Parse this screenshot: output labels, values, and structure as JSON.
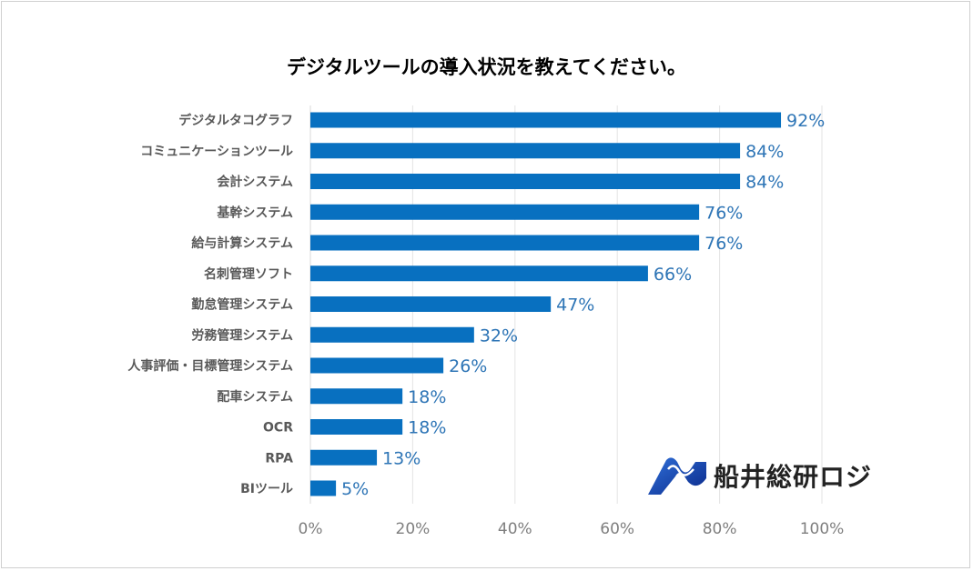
{
  "chart_data": {
    "type": "bar",
    "orientation": "horizontal",
    "title": "デジタルツールの導入状況を教えてください。",
    "categories": [
      "デジタルタコグラフ",
      "コミュニケーションツール",
      "会計システム",
      "基幹システム",
      "給与計算システム",
      "名刺管理ソフト",
      "勤怠管理システム",
      "労務管理システム",
      "人事評価・目標管理システム",
      "配車システム",
      "OCR",
      "RPA",
      "BIツール"
    ],
    "values": [
      92,
      84,
      84,
      76,
      76,
      66,
      47,
      32,
      26,
      18,
      18,
      13,
      5
    ],
    "value_labels": [
      "92%",
      "84%",
      "84%",
      "76%",
      "76%",
      "66%",
      "47%",
      "32%",
      "26%",
      "18%",
      "18%",
      "13%",
      "5%"
    ],
    "xlim": [
      0,
      100
    ],
    "xticks": [
      0,
      20,
      40,
      60,
      80,
      100
    ],
    "xtick_labels": [
      "0%",
      "20%",
      "40%",
      "60%",
      "80%",
      "100%"
    ],
    "grid": "vertical",
    "legend": "none",
    "bar_color": "#0870c0",
    "label_color": "#2e75b6"
  },
  "logo": {
    "text": "船井総研ロジ",
    "color": "#1a3fa0"
  }
}
